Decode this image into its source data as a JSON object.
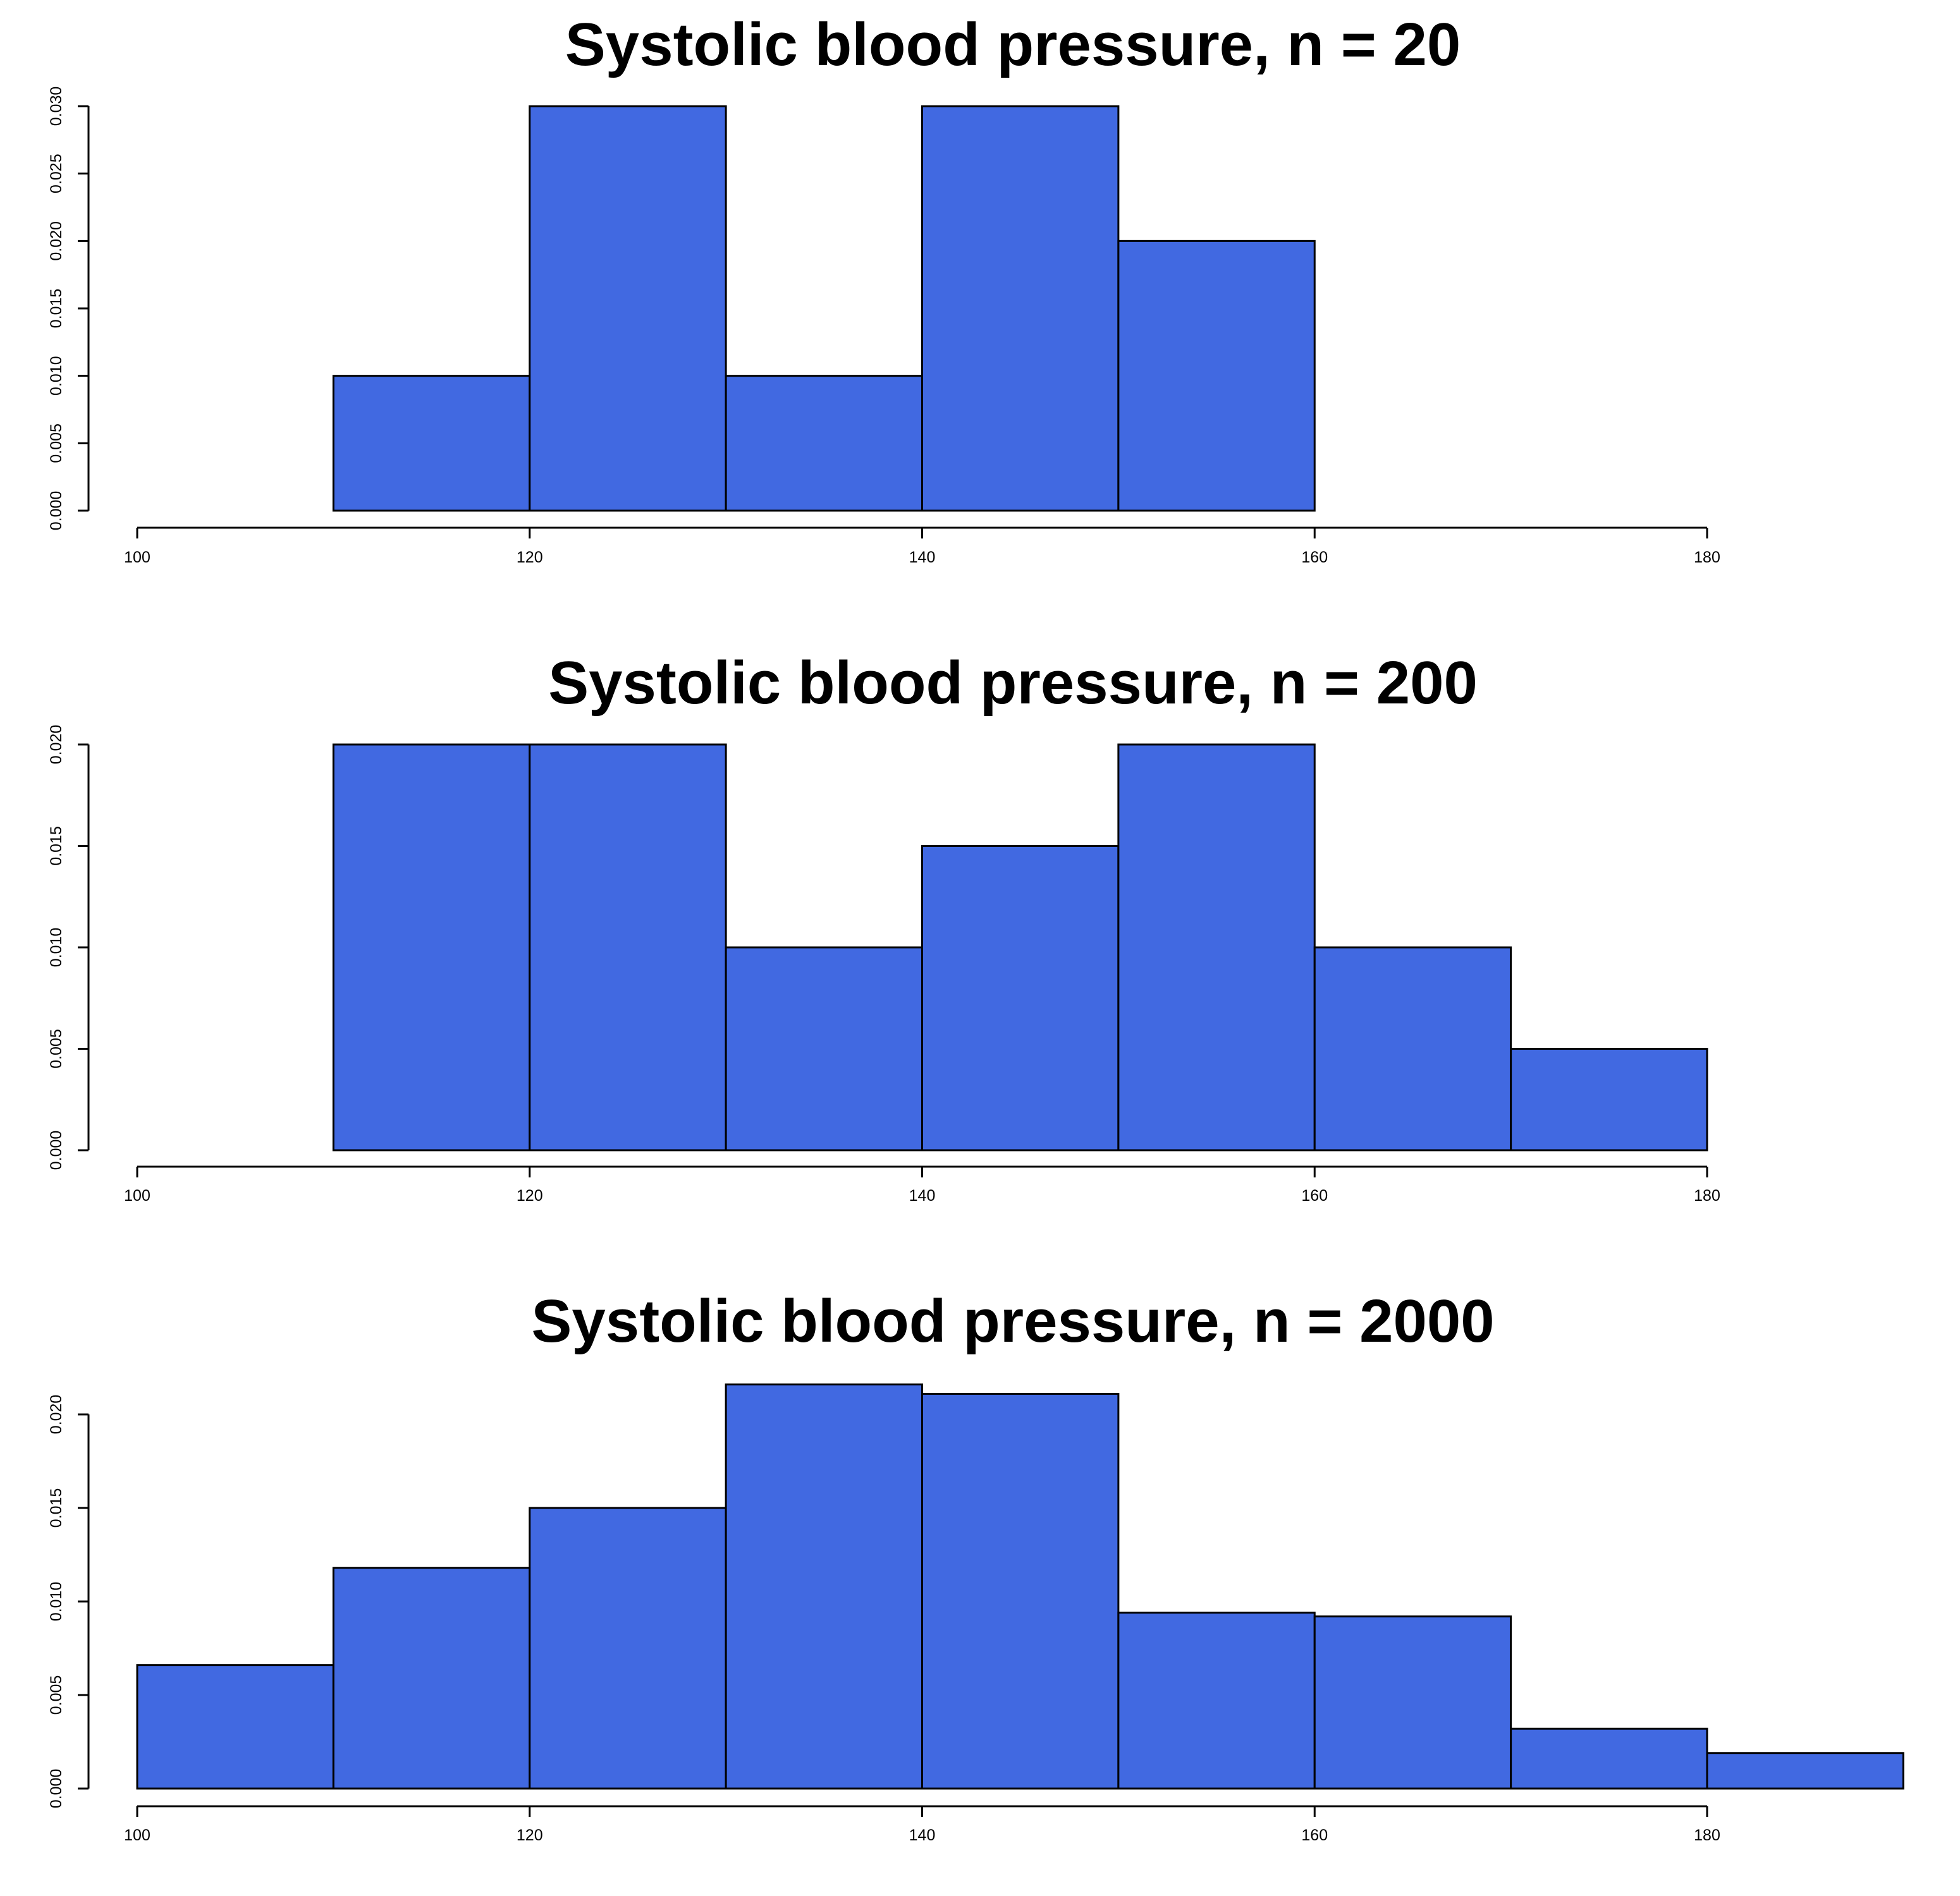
{
  "chart_data": [
    {
      "type": "bar",
      "title": "Systolic blood pressure, n = 20",
      "bins": [
        {
          "x0": 110,
          "x1": 120,
          "density": 0.01
        },
        {
          "x0": 120,
          "x1": 130,
          "density": 0.03
        },
        {
          "x0": 130,
          "x1": 140,
          "density": 0.01
        },
        {
          "x0": 140,
          "x1": 150,
          "density": 0.03
        },
        {
          "x0": 150,
          "x1": 160,
          "density": 0.02
        }
      ],
      "xlim": [
        100,
        180
      ],
      "ylim": [
        0,
        0.03
      ],
      "xticks": [
        "100",
        "120",
        "140",
        "160",
        "180"
      ],
      "yticks": [
        "0.000",
        "0.005",
        "0.010",
        "0.015",
        "0.020",
        "0.025",
        "0.030"
      ],
      "xlabel": "",
      "ylabel": "",
      "grid": false,
      "bar_color": "#4169E1"
    },
    {
      "type": "bar",
      "title": "Systolic blood pressure, n = 200",
      "bins": [
        {
          "x0": 110,
          "x1": 120,
          "density": 0.02
        },
        {
          "x0": 120,
          "x1": 130,
          "density": 0.02
        },
        {
          "x0": 130,
          "x1": 140,
          "density": 0.01
        },
        {
          "x0": 140,
          "x1": 150,
          "density": 0.015
        },
        {
          "x0": 150,
          "x1": 160,
          "density": 0.02
        },
        {
          "x0": 160,
          "x1": 170,
          "density": 0.01
        },
        {
          "x0": 170,
          "x1": 180,
          "density": 0.005
        }
      ],
      "xlim": [
        100,
        180
      ],
      "ylim": [
        0,
        0.02
      ],
      "xticks": [
        "100",
        "120",
        "140",
        "160",
        "180"
      ],
      "yticks": [
        "0.000",
        "0.005",
        "0.010",
        "0.015",
        "0.020"
      ],
      "xlabel": "",
      "ylabel": "",
      "grid": false,
      "bar_color": "#4169E1"
    },
    {
      "type": "bar",
      "title": "Systolic blood pressure, n = 2000",
      "bins": [
        {
          "x0": 100,
          "x1": 110,
          "density": 0.0066
        },
        {
          "x0": 110,
          "x1": 120,
          "density": 0.0118
        },
        {
          "x0": 120,
          "x1": 130,
          "density": 0.015
        },
        {
          "x0": 130,
          "x1": 140,
          "density": 0.0216
        },
        {
          "x0": 140,
          "x1": 150,
          "density": 0.0211
        },
        {
          "x0": 150,
          "x1": 160,
          "density": 0.0094
        },
        {
          "x0": 160,
          "x1": 170,
          "density": 0.0092
        },
        {
          "x0": 170,
          "x1": 180,
          "density": 0.0032
        },
        {
          "x0": 180,
          "x1": 190,
          "density": 0.0019
        }
      ],
      "xlim": [
        100,
        180
      ],
      "ylim": [
        0,
        0.02
      ],
      "xticks": [
        "100",
        "120",
        "140",
        "160",
        "180"
      ],
      "yticks": [
        "0.000",
        "0.005",
        "0.010",
        "0.015",
        "0.020"
      ],
      "xlabel": "",
      "ylabel": "",
      "grid": false,
      "bar_color": "#4169E1"
    }
  ]
}
